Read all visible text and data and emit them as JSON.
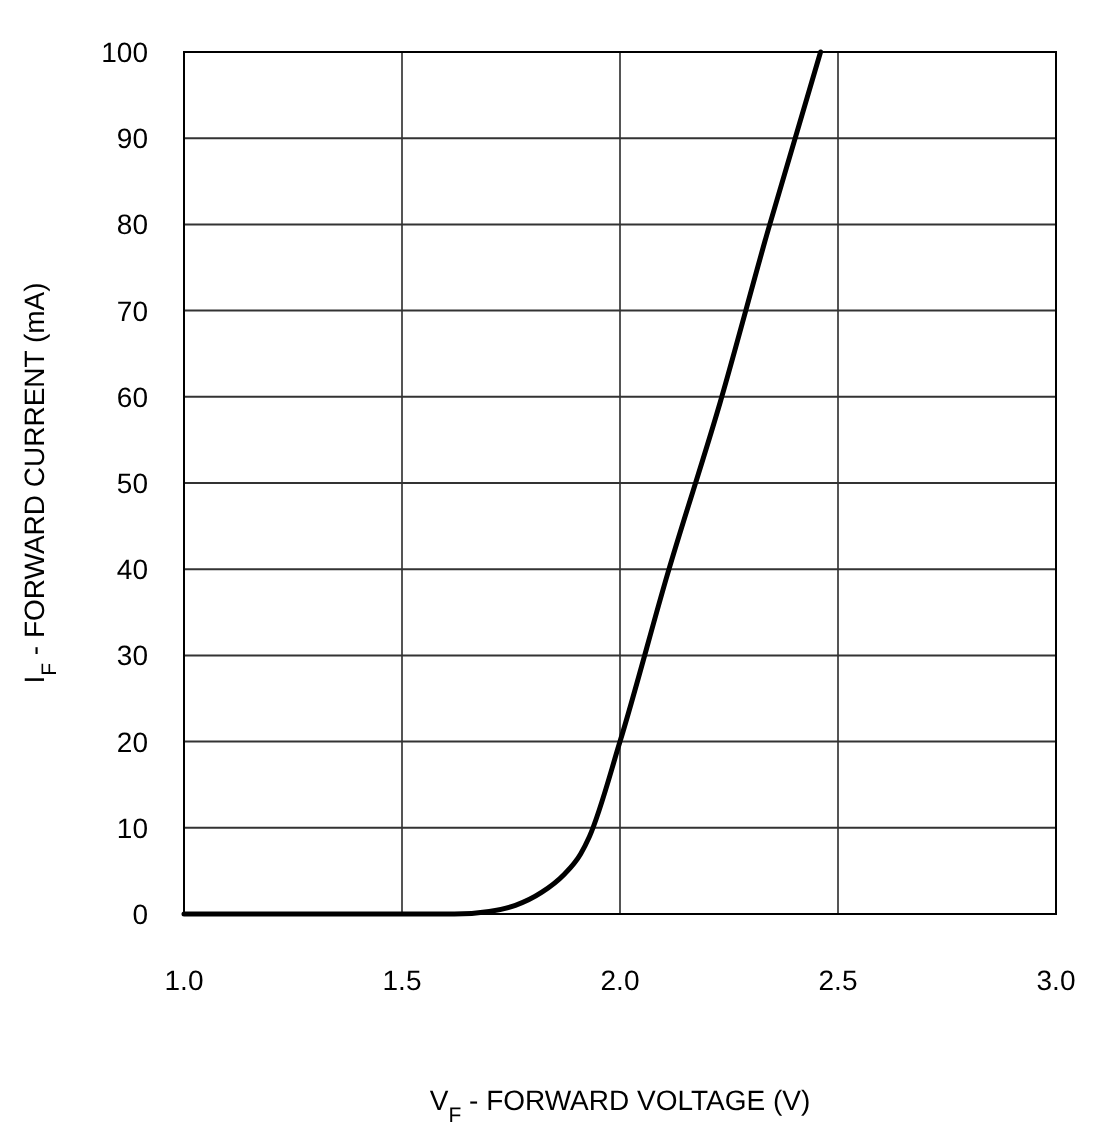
{
  "chart_data": {
    "type": "line",
    "xlabel": "V$_{F}$ - FORWARD VOLTAGE (V)",
    "ylabel": "I$_{F}$ - FORWARD CURRENT (mA)",
    "x": [
      1.0,
      1.62,
      1.7,
      1.76,
      1.82,
      1.87,
      1.91,
      1.93,
      2.0,
      2.11,
      2.23,
      2.34,
      2.46
    ],
    "series": [
      {
        "color": "#000000",
        "values": [
          0,
          0,
          0.3,
          1,
          2.5,
          4.5,
          7,
          9,
          20,
          39.6,
          59.4,
          79.4,
          100
        ]
      }
    ],
    "xlim": [
      1.0,
      3.0
    ],
    "xticks": [
      {
        "value": 1,
        "label": "1.0"
      },
      1.5,
      {
        "value": 2,
        "label": "2.0"
      },
      2.5,
      {
        "value": 3,
        "label": "3.0"
      }
    ],
    "ylim": [
      0,
      100
    ],
    "yticks": [
      0,
      10,
      20,
      30,
      40,
      50,
      60,
      70,
      80,
      90,
      100
    ],
    "grid": true,
    "marker": "none",
    "line_style": "solid"
  }
}
